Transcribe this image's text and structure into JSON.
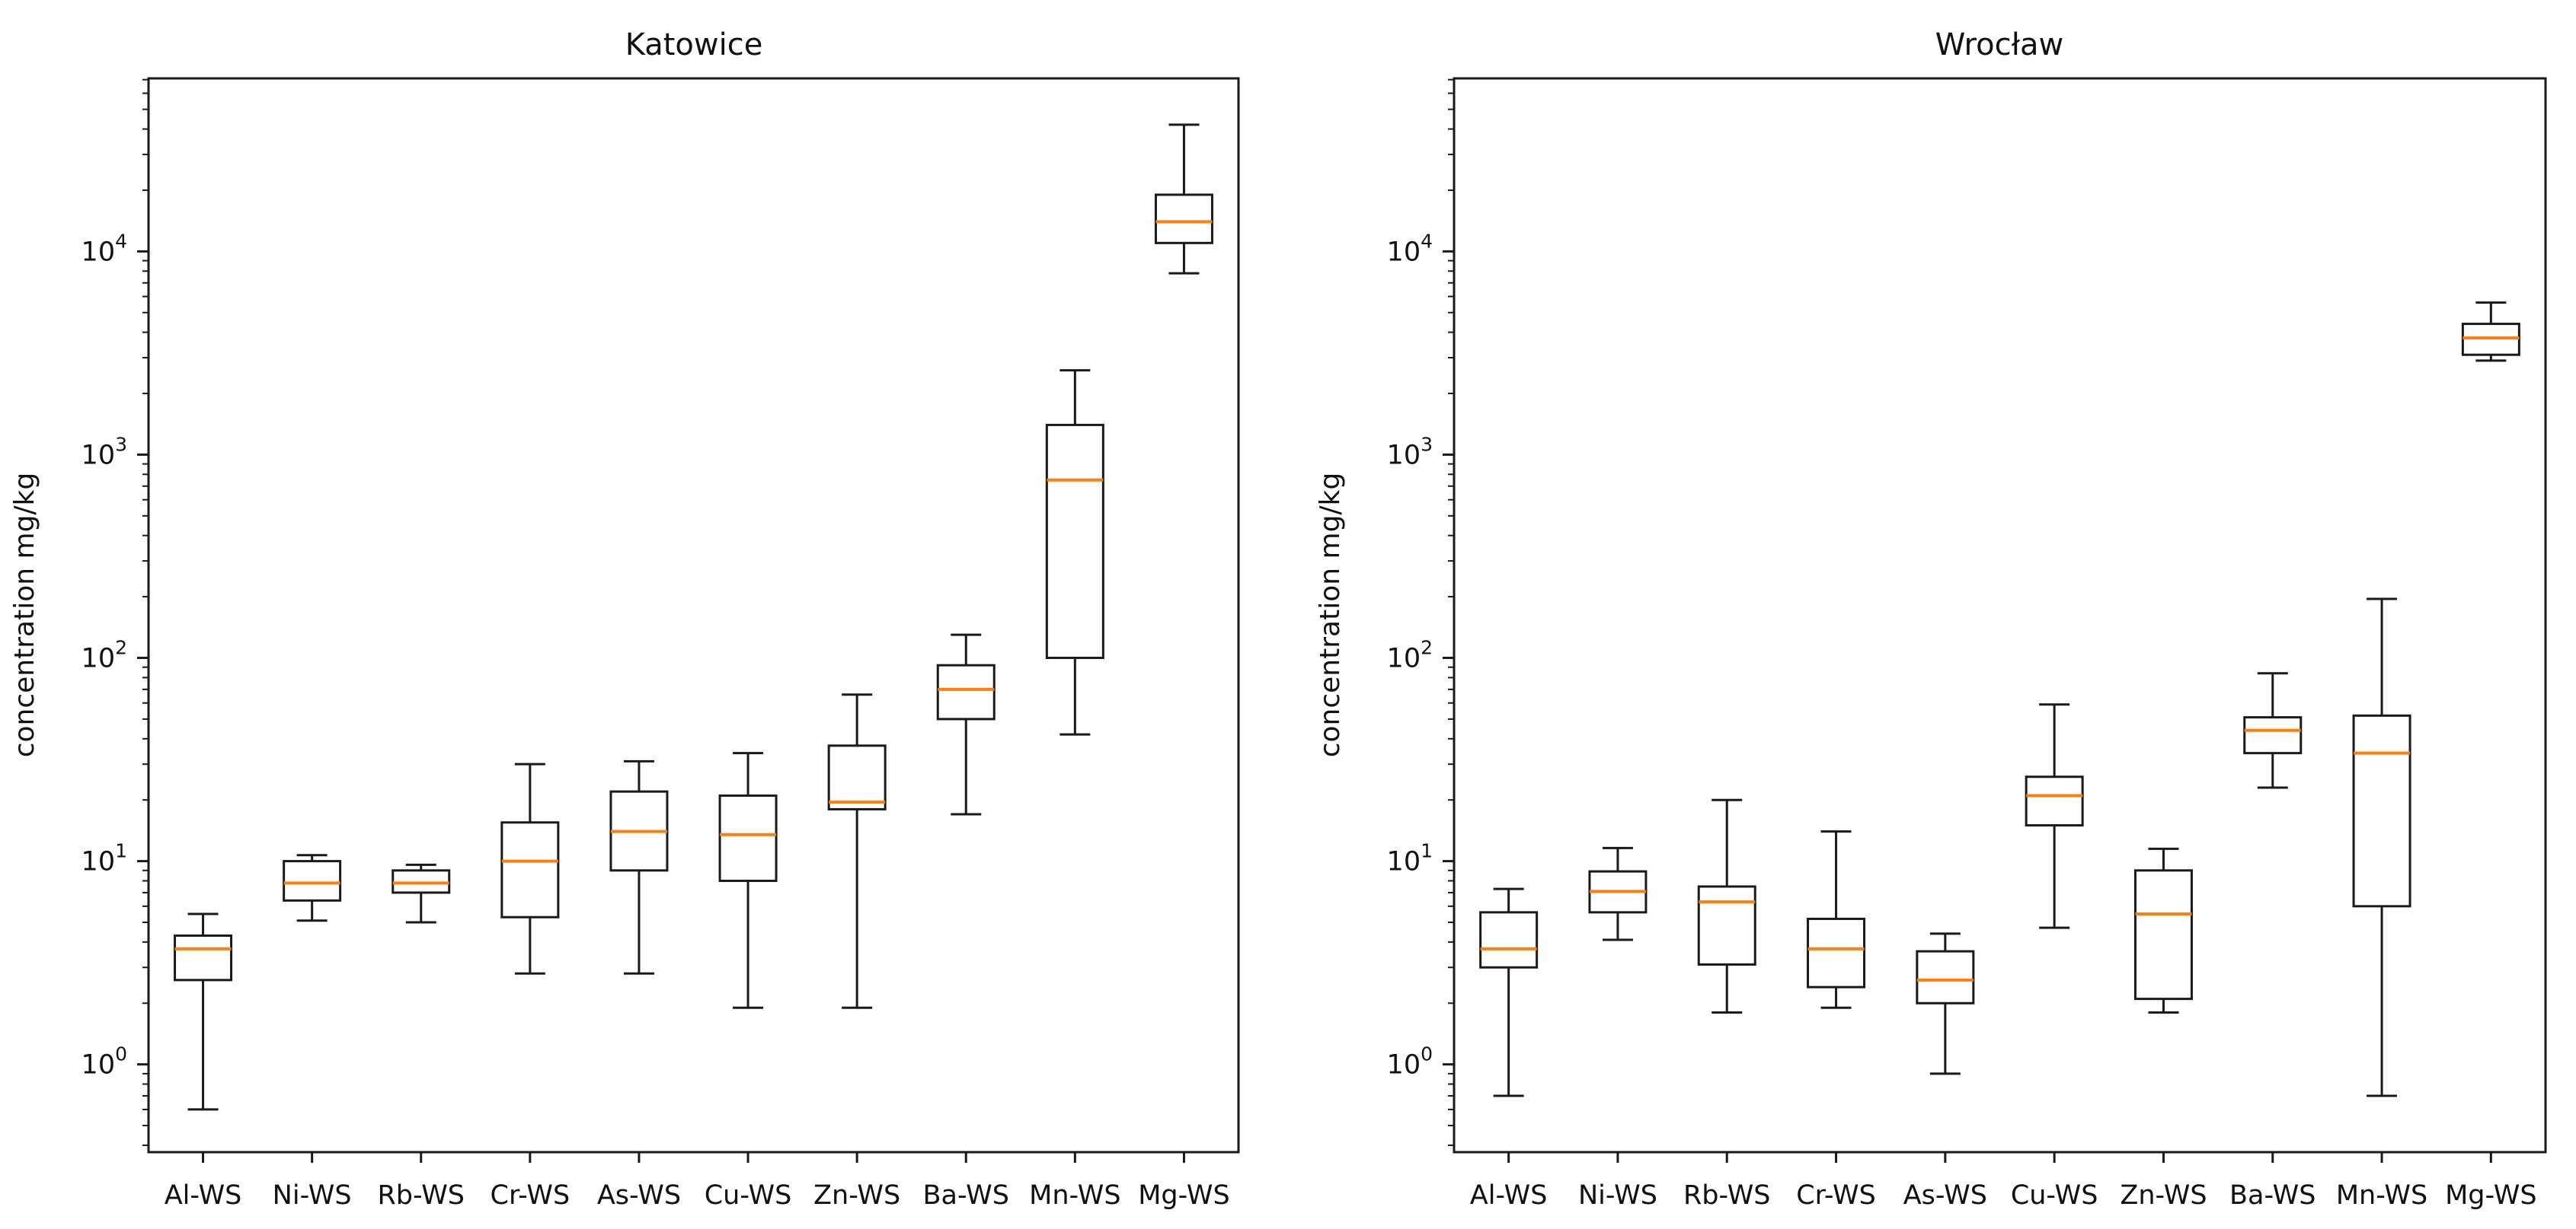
{
  "figure": {
    "background_color": "#ffffff",
    "box_line_color": "#1a1a1a",
    "median_color": "#ff7f0e",
    "text_color": "#111111"
  },
  "chart_data": [
    {
      "type": "box",
      "title": "Katowice",
      "ylabel": "concentration mg/kg",
      "xlabel": "",
      "yscale": "log",
      "ylim": [
        0.37,
        71000
      ],
      "grid": false,
      "legend": "none",
      "ytick_exponents": [
        0,
        1,
        2,
        3,
        4
      ],
      "categories": [
        "Al-WS",
        "Ni-WS",
        "Rb-WS",
        "Cr-WS",
        "As-WS",
        "Cu-WS",
        "Zn-WS",
        "Ba-WS",
        "Mn-WS",
        "Mg-WS"
      ],
      "series": [
        {
          "name": "Al-WS",
          "whislo": 0.6,
          "q1": 2.6,
          "med": 3.7,
          "q3": 4.3,
          "whishi": 5.5
        },
        {
          "name": "Ni-WS",
          "whislo": 5.1,
          "q1": 6.4,
          "med": 7.8,
          "q3": 10.0,
          "whishi": 10.7
        },
        {
          "name": "Rb-WS",
          "whislo": 5.0,
          "q1": 7.0,
          "med": 7.8,
          "q3": 9.0,
          "whishi": 9.6
        },
        {
          "name": "Cr-WS",
          "whislo": 2.8,
          "q1": 5.3,
          "med": 10.0,
          "q3": 15.5,
          "whishi": 30
        },
        {
          "name": "As-WS",
          "whislo": 2.8,
          "q1": 9.0,
          "med": 14.0,
          "q3": 22,
          "whishi": 31
        },
        {
          "name": "Cu-WS",
          "whislo": 1.9,
          "q1": 8.0,
          "med": 13.5,
          "q3": 21,
          "whishi": 34
        },
        {
          "name": "Zn-WS",
          "whislo": 1.9,
          "q1": 18,
          "med": 19.5,
          "q3": 37,
          "whishi": 66
        },
        {
          "name": "Ba-WS",
          "whislo": 17,
          "q1": 50,
          "med": 70,
          "q3": 92,
          "whishi": 130
        },
        {
          "name": "Mn-WS",
          "whislo": 42,
          "q1": 100,
          "med": 750,
          "q3": 1400,
          "whishi": 2600
        },
        {
          "name": "Mg-WS",
          "whislo": 7800,
          "q1": 11000,
          "med": 14000,
          "q3": 19000,
          "whishi": 42000
        }
      ]
    },
    {
      "type": "box",
      "title": "Wrocław",
      "ylabel": "concentration mg/kg",
      "xlabel": "",
      "yscale": "log",
      "ylim": [
        0.37,
        71000
      ],
      "grid": false,
      "legend": "none",
      "ytick_exponents": [
        0,
        1,
        2,
        3,
        4
      ],
      "categories": [
        "Al-WS",
        "Ni-WS",
        "Rb-WS",
        "Cr-WS",
        "As-WS",
        "Cu-WS",
        "Zn-WS",
        "Ba-WS",
        "Mn-WS",
        "Mg-WS"
      ],
      "series": [
        {
          "name": "Al-WS",
          "whislo": 0.7,
          "q1": 3.0,
          "med": 3.7,
          "q3": 5.6,
          "whishi": 7.3
        },
        {
          "name": "Ni-WS",
          "whislo": 4.1,
          "q1": 5.6,
          "med": 7.1,
          "q3": 8.9,
          "whishi": 11.6
        },
        {
          "name": "Rb-WS",
          "whislo": 1.8,
          "q1": 3.1,
          "med": 6.3,
          "q3": 7.5,
          "whishi": 20
        },
        {
          "name": "Cr-WS",
          "whislo": 1.9,
          "q1": 2.4,
          "med": 3.7,
          "q3": 5.2,
          "whishi": 14
        },
        {
          "name": "As-WS",
          "whislo": 0.9,
          "q1": 2.0,
          "med": 2.6,
          "q3": 3.6,
          "whishi": 4.4
        },
        {
          "name": "Cu-WS",
          "whislo": 4.7,
          "q1": 15,
          "med": 21,
          "q3": 26,
          "whishi": 59
        },
        {
          "name": "Zn-WS",
          "whislo": 1.8,
          "q1": 2.1,
          "med": 5.5,
          "q3": 9.0,
          "whishi": 11.5
        },
        {
          "name": "Ba-WS",
          "whislo": 23,
          "q1": 34,
          "med": 44,
          "q3": 51,
          "whishi": 84
        },
        {
          "name": "Mn-WS",
          "whislo": 0.7,
          "q1": 6.0,
          "med": 34,
          "q3": 52,
          "whishi": 195
        },
        {
          "name": "Mg-WS",
          "whislo": 2900,
          "q1": 3100,
          "med": 3750,
          "q3": 4400,
          "whishi": 5600
        }
      ]
    }
  ]
}
